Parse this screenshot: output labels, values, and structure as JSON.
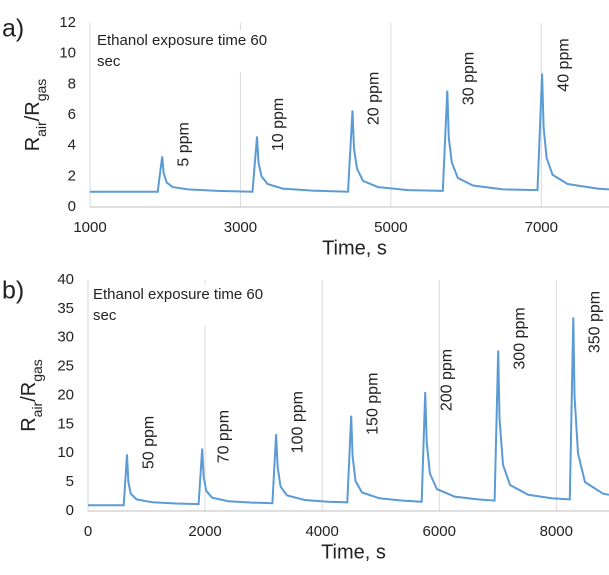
{
  "chart_data": [
    {
      "type": "line",
      "panel_label": "a)",
      "note": "Ethanol exposure time 60 sec",
      "x_label": "Time, s",
      "y_label_parts": [
        "R",
        "air",
        "/R",
        "gas"
      ],
      "color": "#5b9bd5",
      "grid": true,
      "xlim": [
        1000,
        7900
      ],
      "xticks": [
        1000,
        3000,
        5000,
        7000
      ],
      "ylim": [
        0,
        12
      ],
      "yticks": [
        0,
        2,
        4,
        6,
        8,
        10,
        12
      ],
      "x": [
        1000,
        1900,
        1960,
        1980,
        2020,
        2100,
        2300,
        2700,
        3160,
        3220,
        3240,
        3280,
        3360,
        3560,
        3960,
        4430,
        4490,
        4510,
        4550,
        4630,
        4830,
        5230,
        5690,
        5750,
        5770,
        5810,
        5890,
        6090,
        6490,
        6950,
        7010,
        7030,
        7070,
        7150,
        7350,
        7750,
        7900
      ],
      "values": [
        1.0,
        1.0,
        3.3,
        2.2,
        1.6,
        1.3,
        1.15,
        1.05,
        1.0,
        4.6,
        2.9,
        2.0,
        1.5,
        1.2,
        1.07,
        1.0,
        6.3,
        3.8,
        2.5,
        1.7,
        1.3,
        1.1,
        1.05,
        7.6,
        4.5,
        2.9,
        1.9,
        1.4,
        1.15,
        1.1,
        8.7,
        5.2,
        3.2,
        2.1,
        1.5,
        1.2,
        1.15
      ],
      "annotations": [
        "5 ppm",
        "10 ppm",
        "20 ppm",
        "30 ppm",
        "40 ppm"
      ]
    },
    {
      "type": "line",
      "panel_label": "b)",
      "note": "Ethanol exposure time 60 sec",
      "x_label": "Time, s",
      "y_label_parts": [
        "R",
        "air",
        "/R",
        "gas"
      ],
      "color": "#5b9bd5",
      "grid": true,
      "xlim": [
        0,
        8900
      ],
      "xticks": [
        0,
        2000,
        4000,
        6000,
        8000
      ],
      "ylim": [
        0,
        40
      ],
      "yticks": [
        0,
        5,
        10,
        15,
        20,
        25,
        30,
        35,
        40
      ],
      "x": [
        0,
        610,
        667,
        690,
        730,
        830,
        1100,
        1500,
        1890,
        1950,
        1975,
        2020,
        2120,
        2400,
        2800,
        3150,
        3213,
        3240,
        3290,
        3400,
        3700,
        4100,
        4430,
        4496,
        4520,
        4570,
        4680,
        4980,
        5380,
        5700,
        5761,
        5785,
        5840,
        5960,
        6260,
        6660,
        6945,
        7008,
        7030,
        7090,
        7210,
        7520,
        7920,
        8230,
        8290,
        8310,
        8370,
        8490,
        8800,
        8900
      ],
      "values": [
        1.0,
        1.0,
        9.8,
        5.0,
        3.0,
        2.0,
        1.5,
        1.3,
        1.2,
        10.8,
        6.0,
        3.5,
        2.3,
        1.7,
        1.45,
        1.35,
        13.3,
        7.5,
        4.2,
        2.7,
        1.9,
        1.6,
        1.5,
        16.5,
        9.5,
        5.2,
        3.2,
        2.2,
        1.8,
        1.6,
        20.6,
        12.0,
        6.5,
        3.8,
        2.5,
        2.0,
        1.8,
        27.8,
        16.0,
        8.0,
        4.5,
        2.8,
        2.2,
        2.0,
        33.5,
        20.0,
        10.0,
        5.0,
        3.0,
        2.8
      ],
      "annotations": [
        "50 ppm",
        "70 ppm",
        "100 ppm",
        "150 ppm",
        "200 ppm",
        "300 ppm",
        "350 ppm"
      ]
    }
  ]
}
